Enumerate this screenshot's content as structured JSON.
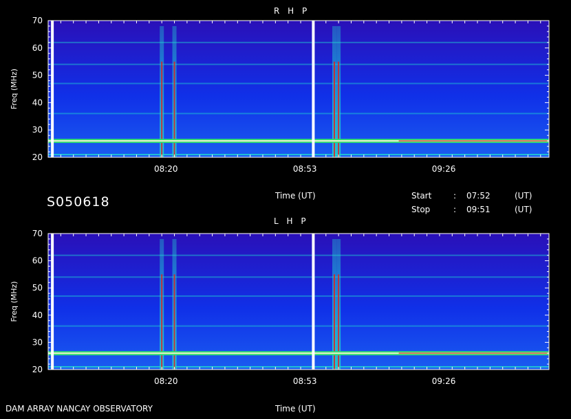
{
  "panels": [
    {
      "title": "R H P"
    },
    {
      "title": "L H P"
    }
  ],
  "observation_id": "S050618",
  "time_axis_label": "Time (UT)",
  "start": {
    "label": "Start",
    "sep": ":",
    "value": "07:52",
    "unit": "(UT)"
  },
  "stop": {
    "label": "Stop",
    "sep": ":",
    "value": "09:51",
    "unit": "(UT)"
  },
  "footer": "DAM ARRAY  NANCAY OBSERVATORY",
  "chart_data": [
    {
      "type": "heatmap",
      "title": "R H P",
      "ylabel": "Freq (MHz)",
      "xlabel": "Time (UT)",
      "ylim": [
        20,
        70
      ],
      "xlim": [
        "07:52",
        "09:51"
      ],
      "yticks": [
        20,
        30,
        40,
        50,
        60,
        70
      ],
      "xticks": [
        "08:20",
        "08:53",
        "09:26"
      ],
      "vertical_lines_utc": [
        "07:53",
        "08:55"
      ],
      "bursts_utc": [
        "08:19",
        "08:22",
        "09:00",
        "09:01"
      ],
      "bands_mhz": [
        26,
        21,
        36,
        47,
        54,
        62
      ]
    },
    {
      "type": "heatmap",
      "title": "L H P",
      "ylabel": "Freq (MHz)",
      "xlabel": "Time (UT)",
      "ylim": [
        20,
        70
      ],
      "xlim": [
        "07:52",
        "09:51"
      ],
      "yticks": [
        20,
        30,
        40,
        50,
        60,
        70
      ],
      "xticks": [
        "08:20",
        "08:53",
        "09:26"
      ],
      "vertical_lines_utc": [
        "07:53",
        "08:55"
      ],
      "bursts_utc": [
        "08:19",
        "08:22",
        "09:00",
        "09:01"
      ],
      "bands_mhz": [
        26,
        21,
        36,
        47,
        54,
        62
      ]
    }
  ],
  "colors": {
    "background": "#000000",
    "spectrum_low": "#2a10b8",
    "spectrum_mid": "#1030e8",
    "band": "#20d8d0",
    "burst": "#e02020",
    "axis": "#ffffff"
  }
}
